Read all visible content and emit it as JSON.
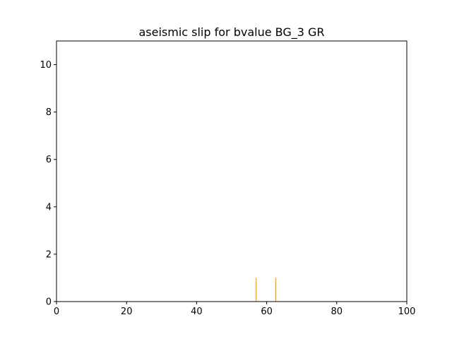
{
  "chart_data": {
    "type": "bar",
    "title": "aseismic slip for bvalue BG_3 GR",
    "xlabel": "",
    "ylabel": "",
    "xlim": [
      0,
      100
    ],
    "ylim": [
      0,
      11
    ],
    "xticks": [
      0,
      20,
      40,
      60,
      80,
      100
    ],
    "yticks": [
      0,
      2,
      4,
      6,
      8,
      10
    ],
    "grid": false,
    "legend": "none",
    "bar_color": "#ff9900",
    "series": [
      {
        "x": [
          57,
          62.6
        ],
        "values": [
          1,
          1
        ]
      }
    ]
  }
}
